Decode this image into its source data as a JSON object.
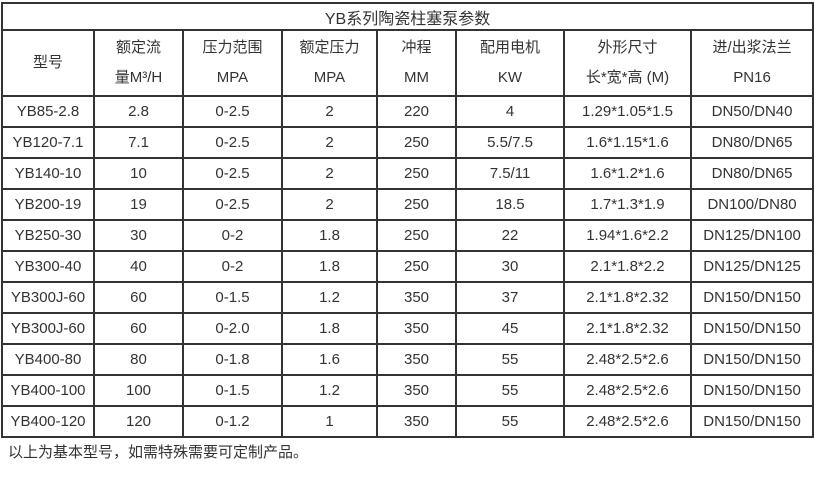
{
  "title": "YB系列陶瓷柱塞泵参数",
  "columns": [
    {
      "line1": "型号",
      "line2": ""
    },
    {
      "line1": "额定流",
      "line2": "量M³/H"
    },
    {
      "line1": "压力范围",
      "line2": "MPA"
    },
    {
      "line1": "额定压力",
      "line2": "MPA"
    },
    {
      "line1": "冲程",
      "line2": "MM"
    },
    {
      "line1": "配用电机",
      "line2": "KW"
    },
    {
      "line1": "外形尺寸",
      "line2": "长*宽*高 (M)"
    },
    {
      "line1": "进/出浆法兰",
      "line2": "PN16"
    }
  ],
  "rows": [
    [
      "YB85-2.8",
      "2.8",
      "0-2.5",
      "2",
      "220",
      "4",
      "1.29*1.05*1.5",
      "DN50/DN40"
    ],
    [
      "YB120-7.1",
      "7.1",
      "0-2.5",
      "2",
      "250",
      "5.5/7.5",
      "1.6*1.15*1.6",
      "DN80/DN65"
    ],
    [
      "YB140-10",
      "10",
      "0-2.5",
      "2",
      "250",
      "7.5/11",
      "1.6*1.2*1.6",
      "DN80/DN65"
    ],
    [
      "YB200-19",
      "19",
      "0-2.5",
      "2",
      "250",
      "18.5",
      "1.7*1.3*1.9",
      "DN100/DN80"
    ],
    [
      "YB250-30",
      "30",
      "0-2",
      "1.8",
      "250",
      "22",
      "1.94*1.6*2.2",
      "DN125/DN100"
    ],
    [
      "YB300-40",
      "40",
      "0-2",
      "1.8",
      "250",
      "30",
      "2.1*1.8*2.2",
      "DN125/DN125"
    ],
    [
      "YB300J-60",
      "60",
      "0-1.5",
      "1.2",
      "350",
      "37",
      "2.1*1.8*2.32",
      "DN150/DN150"
    ],
    [
      "YB300J-60",
      "60",
      "0-2.0",
      "1.8",
      "350",
      "45",
      "2.1*1.8*2.32",
      "DN150/DN150"
    ],
    [
      "YB400-80",
      "80",
      "0-1.8",
      "1.6",
      "350",
      "55",
      "2.48*2.5*2.6",
      "DN150/DN150"
    ],
    [
      "YB400-100",
      "100",
      "0-1.5",
      "1.2",
      "350",
      "55",
      "2.48*2.5*2.6",
      "DN150/DN150"
    ],
    [
      "YB400-120",
      "120",
      "0-1.2",
      "1",
      "350",
      "55",
      "2.48*2.5*2.6",
      "DN150/DN150"
    ]
  ],
  "footer_note": "以上为基本型号，如需特殊需要可定制产品。",
  "colors": {
    "border": "#333333",
    "text": "#333333",
    "background": "#ffffff"
  }
}
